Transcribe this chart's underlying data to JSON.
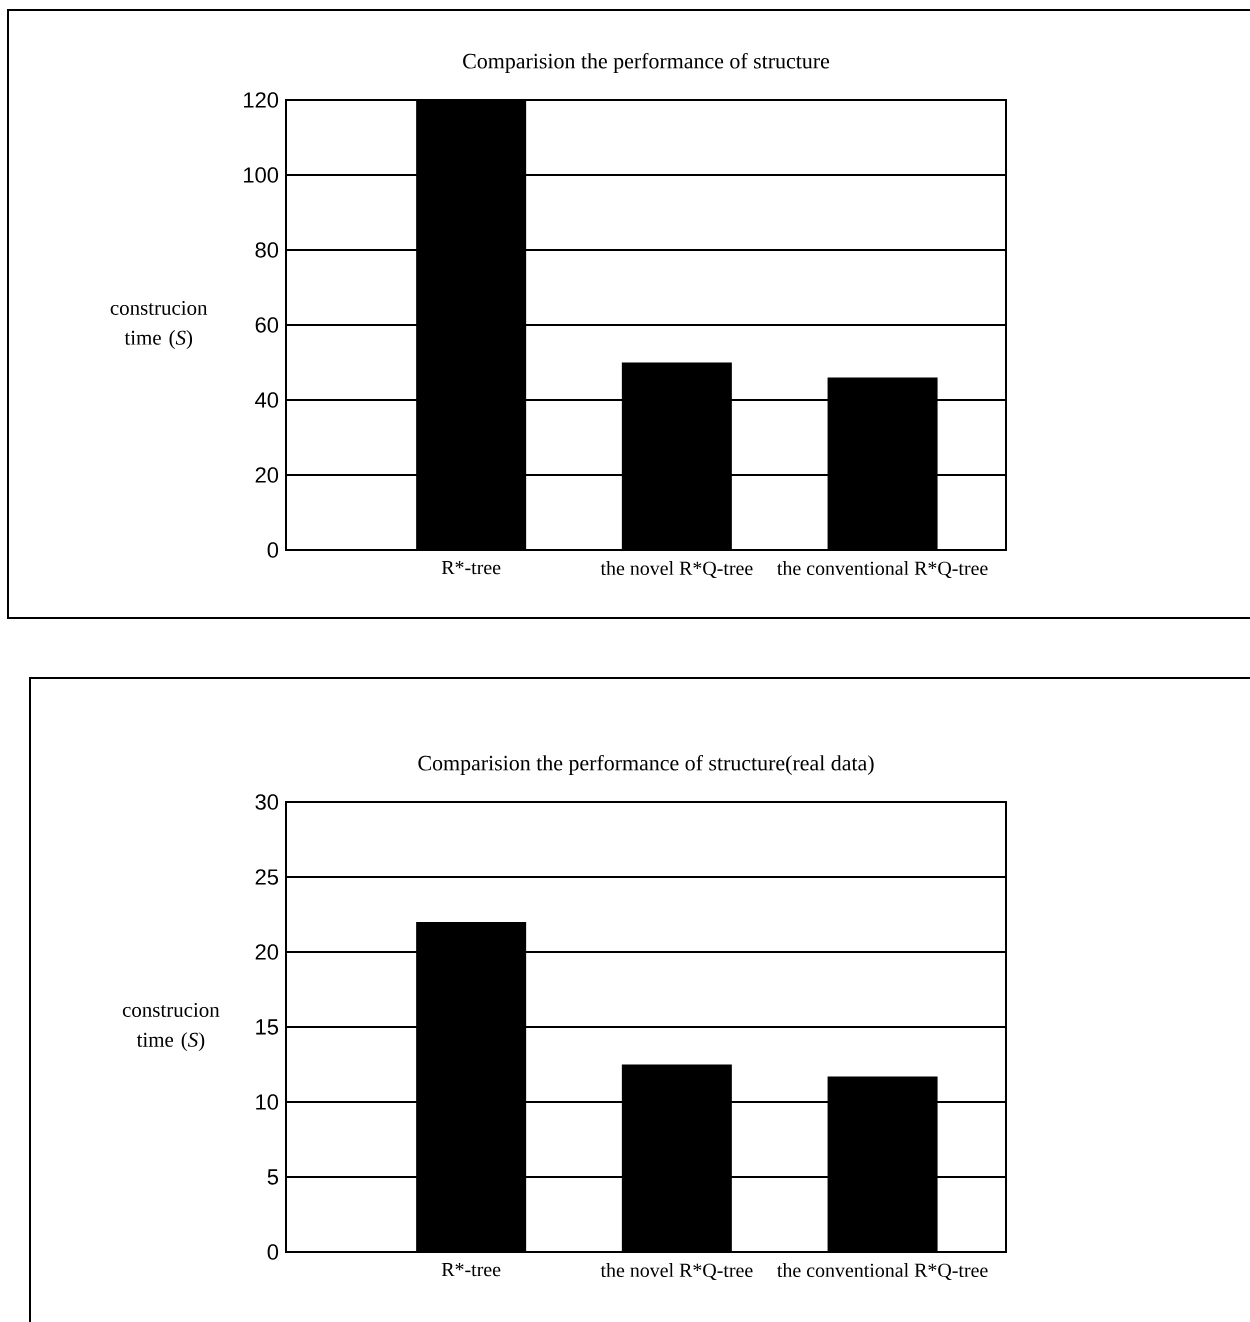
{
  "chart_data": [
    {
      "type": "bar",
      "title": "Comparision the performance of structure",
      "ylabel": "construcion time (*S*)",
      "categories": [
        "R*-tree",
        "the novel R*Q-tree",
        "the conventional R*Q-tree"
      ],
      "values": [
        120,
        50,
        46
      ],
      "color": "#000000",
      "ylim": [
        0,
        120
      ],
      "yticks": [
        0,
        20,
        40,
        60,
        80,
        100,
        120
      ],
      "grid": "y"
    },
    {
      "type": "bar",
      "title": "Comparision the performance of structure(real data)",
      "ylabel": "construcion time (*S*)",
      "categories": [
        "R*-tree",
        "the novel R*Q-tree",
        "the conventional R*Q-tree"
      ],
      "values": [
        22,
        12.5,
        11.7
      ],
      "color": "#000000",
      "ylim": [
        0,
        30
      ],
      "yticks": [
        0,
        5,
        10,
        15,
        20,
        25,
        30
      ],
      "grid": "y"
    }
  ]
}
